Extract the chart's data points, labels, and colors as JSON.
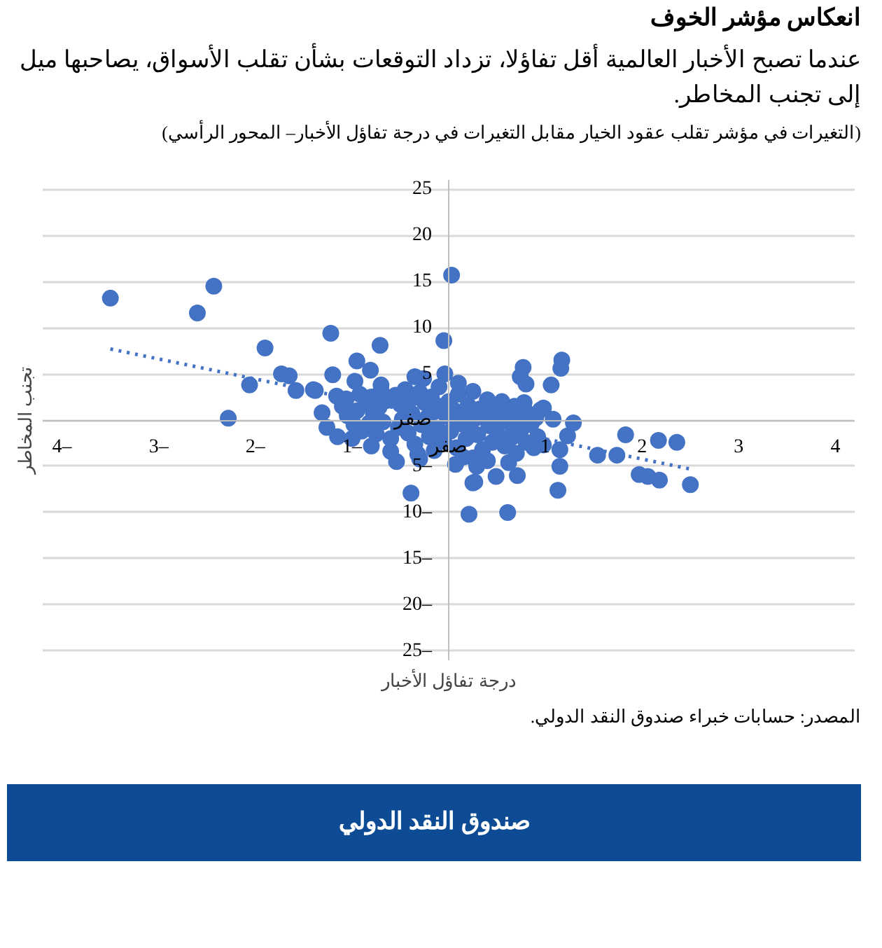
{
  "chart_data": {
    "type": "scatter",
    "title": "انعكاس مؤشر الخوف",
    "subtitle": "عندما تصبح الأخبار العالمية أقل تفاؤلا، تزداد التوقعات بشأن تقلب الأسواق، يصاحبها ميل إلى تجنب المخاطر.",
    "xlabel": "درجة تفاؤل الأخبار",
    "ylabel": "تجنب المخاطر",
    "annotations": [
      "(التغيرات في مؤشر تقلب عقود الخيار مقابل التغيرات في درجة تفاؤل الأخبار– المحور الرأسي)",
      "المصدر: حسابات خبراء صندوق النقد الدولي.",
      "صندوق النقد الدولي"
    ],
    "xlim": [
      -4.2,
      4.2
    ],
    "ylim": [
      -26,
      26
    ],
    "xticks": [
      {
        "value": -4,
        "label": "4–"
      },
      {
        "value": -3,
        "label": "3–"
      },
      {
        "value": -2,
        "label": "2–"
      },
      {
        "value": -1,
        "label": "1–"
      },
      {
        "value": 0,
        "label": "صفر"
      },
      1,
      2,
      3,
      4
    ],
    "yticks": [
      {
        "value": -25,
        "label": "25–"
      },
      {
        "value": -20,
        "label": "20–"
      },
      {
        "value": -15,
        "label": "15–"
      },
      {
        "value": -10,
        "label": "10–"
      },
      {
        "value": -5,
        "label": "5–"
      },
      {
        "value": 0,
        "label": "صفر"
      },
      5,
      10,
      15,
      20,
      25
    ],
    "grid": "y",
    "marker": "circle",
    "series": [
      {
        "type": "scatter",
        "color": "#4472c4",
        "x": [
          -3.5,
          -2.43,
          -2.6,
          -2.28,
          -1.9,
          -2.06,
          -1.73,
          -1.65,
          -1.58,
          -1.4,
          -1.38,
          -1.22,
          -1.2,
          -1.16,
          -1.06,
          -1.31,
          -0.97,
          -0.95,
          -0.81,
          -0.71,
          -0.35,
          -0.26,
          0.03,
          -0.05,
          -0.04,
          1.16,
          1.06,
          1.17,
          0.98,
          0.77,
          0.74,
          0.8,
          1.08,
          1.29,
          1.23,
          1.15,
          1.15,
          1.13,
          0.21,
          0.61,
          -0.39,
          1.54,
          1.74,
          1.83,
          2.17,
          2.36,
          1.97,
          2.06,
          2.18,
          2.5,
          0.25,
          0.49,
          0.71,
          0.62,
          0.07,
          0.29,
          -1.26,
          -1.15,
          -0.8,
          -0.54,
          -0.32,
          0.27,
          0.25,
          -1.1,
          -1.05,
          -0.98,
          -0.95,
          -0.92,
          -0.9,
          -0.85,
          -0.82,
          -0.8,
          -0.78,
          -0.75,
          -0.72,
          -0.7,
          -0.68,
          -0.65,
          -0.6,
          -0.55,
          -0.52,
          -0.5,
          -0.48,
          -0.45,
          -0.42,
          -0.4,
          -0.38,
          -0.35,
          -0.3,
          -0.28,
          -0.25,
          -0.22,
          -0.2,
          -0.18,
          -0.15,
          -0.12,
          -0.1,
          -0.08,
          -0.05,
          -0.02,
          0.0,
          0.02,
          0.05,
          0.08,
          0.1,
          0.12,
          0.15,
          0.18,
          0.2,
          0.22,
          0.25,
          0.28,
          0.3,
          0.32,
          0.35,
          0.38,
          0.4,
          0.42,
          0.45,
          0.48,
          0.5,
          0.52,
          0.55,
          0.58,
          0.6,
          0.62,
          0.65,
          0.68,
          0.7,
          0.72,
          0.75,
          0.78,
          0.8,
          0.82,
          0.85,
          0.88,
          0.9,
          0.92,
          0.95,
          0.98,
          -0.6,
          -0.3,
          0.15,
          0.4,
          -1.0,
          -0.7,
          0.1,
          -0.15
        ],
        "values": [
          13.2,
          14.5,
          11.6,
          0.2,
          7.8,
          3.8,
          5.0,
          4.8,
          3.2,
          3.3,
          3.2,
          9.4,
          4.9,
          2.6,
          2.3,
          0.8,
          4.2,
          6.4,
          5.4,
          8.1,
          4.7,
          4.5,
          15.7,
          8.6,
          5.0,
          5.6,
          3.8,
          6.5,
          1.3,
          5.7,
          4.7,
          3.9,
          0.1,
          -0.3,
          -1.7,
          -3.2,
          -5.0,
          -7.6,
          -10.2,
          -10.0,
          -7.9,
          -3.8,
          -3.8,
          -1.6,
          -2.2,
          -2.4,
          -5.9,
          -6.1,
          -6.5,
          -7.0,
          -6.8,
          -6.1,
          -6.0,
          -4.6,
          -4.8,
          -5.0,
          -0.8,
          -1.8,
          -2.8,
          -4.5,
          -3.7,
          -6.7,
          -4.1,
          1.5,
          0.5,
          -0.5,
          1.0,
          2.8,
          -1.2,
          1.8,
          -0.3,
          2.5,
          0.8,
          -1.5,
          1.4,
          3.2,
          -0.2,
          2.1,
          -2.0,
          2.7,
          -0.8,
          1.7,
          0.1,
          3.3,
          -1.4,
          2.2,
          0.7,
          -2.6,
          3.0,
          -0.5,
          1.9,
          0.3,
          -1.8,
          2.5,
          0.9,
          -0.9,
          3.6,
          1.5,
          -2.3,
          0.4,
          2.0,
          -1.2,
          1.1,
          -3.0,
          2.8,
          -0.4,
          0.8,
          -2.0,
          1.6,
          -0.9,
          3.1,
          0.2,
          -1.6,
          1.2,
          -3.2,
          0.5,
          2.2,
          -0.6,
          -2.4,
          1.0,
          -1.3,
          0.3,
          2.0,
          -2.8,
          0.9,
          -0.2,
          -1.9,
          1.5,
          -3.6,
          0.4,
          -1.0,
          1.9,
          -2.4,
          0.7,
          -0.5,
          -3.0,
          0.2,
          -1.8,
          1.1,
          -2.7,
          -3.4,
          -4.2,
          -4.0,
          -4.4,
          -2.0,
          3.8,
          4.0,
          -3.3
        ]
      },
      {
        "type": "line",
        "color": "#4472c4",
        "line_style": "dotted",
        "marker": "none",
        "x": [
          -3.5,
          2.5
        ],
        "values": [
          7.7,
          -5.3
        ]
      }
    ]
  }
}
